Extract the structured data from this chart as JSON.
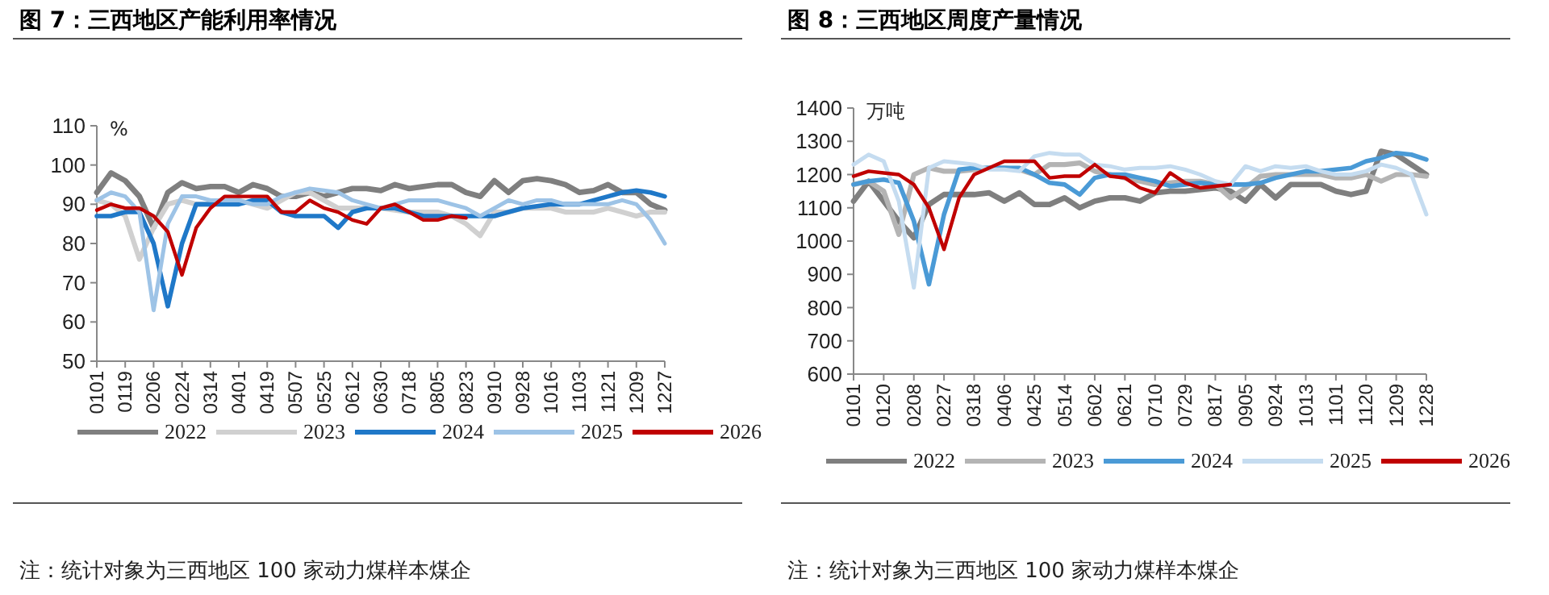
{
  "chart_data": [
    {
      "type": "line",
      "title": "图 7：三西地区产能利用率情况",
      "ylabel": "%",
      "legend": "bottom",
      "grid": false,
      "marker": "none",
      "line_style": "solid",
      "categories": [
        "0101",
        null,
        "0119",
        null,
        "0206",
        null,
        "0224",
        null,
        "0314",
        null,
        "0401",
        null,
        "0419",
        null,
        "0507",
        null,
        "0525",
        null,
        "0612",
        null,
        "0630",
        null,
        "0718",
        null,
        "0805",
        null,
        "0823",
        null,
        "0910",
        null,
        "0928",
        null,
        "1016",
        null,
        "1103",
        null,
        "1121",
        null,
        "1209",
        null,
        "1227"
      ],
      "ylim": [
        50,
        110
      ],
      "yticks": [
        50,
        60,
        70,
        80,
        90,
        100,
        110
      ],
      "annotations": [
        "注：统计对象为三西地区 100 家动力煤样本煤企"
      ],
      "series": [
        {
          "name": "2022",
          "color": "#7f7f7f",
          "values": [
            93,
            98,
            96,
            92,
            84,
            93,
            95.5,
            94,
            94.5,
            94.5,
            93,
            95,
            94,
            92,
            92,
            93,
            92,
            93,
            94,
            94,
            93.5,
            95,
            94,
            94.5,
            95,
            95,
            93,
            92,
            96,
            93,
            96,
            96.5,
            96,
            95,
            93,
            93.5,
            95,
            93,
            93,
            90,
            88.5
          ]
        },
        {
          "name": "2023",
          "color": "#d0d0d0",
          "values": [
            91,
            90,
            87,
            76,
            84,
            90,
            91,
            90,
            90,
            91,
            91,
            90,
            89,
            91,
            93,
            93,
            91,
            89,
            89,
            89,
            89,
            88.5,
            88,
            88,
            88,
            87,
            85,
            82,
            88,
            88,
            89,
            89,
            89,
            88,
            88,
            88,
            89,
            88,
            87,
            88,
            88
          ]
        },
        {
          "name": "2024",
          "color": "#1f78c8",
          "values": [
            87,
            87,
            88,
            88,
            80,
            64,
            80,
            90,
            90,
            90,
            90,
            91,
            91,
            88,
            87,
            87,
            87,
            84,
            88,
            89,
            89,
            89,
            88,
            87,
            87,
            87,
            87,
            87,
            87,
            88,
            89,
            89.5,
            90,
            90,
            90,
            91,
            92,
            93,
            93.5,
            93,
            92
          ]
        },
        {
          "name": "2025",
          "color": "#9dc3e6",
          "values": [
            91,
            93,
            92,
            88,
            63,
            85,
            92,
            92,
            91,
            91,
            91,
            90,
            90,
            92,
            93,
            94,
            93.5,
            93,
            91,
            90,
            89,
            90,
            91,
            91,
            91,
            90,
            89,
            87,
            89,
            91,
            90,
            91,
            91,
            90,
            90,
            90,
            90,
            91,
            90,
            86,
            80
          ]
        },
        {
          "name": "2026",
          "color": "#c00000",
          "values": [
            88.5,
            90,
            89,
            89,
            87,
            83,
            72,
            84,
            89,
            92,
            92,
            92,
            92,
            88,
            88,
            91,
            89,
            88,
            86,
            85,
            89,
            90,
            88,
            86,
            86,
            87,
            86.5,
            null,
            null,
            null,
            null,
            null,
            null,
            null,
            null,
            null,
            null,
            null,
            null,
            null,
            null
          ]
        }
      ]
    },
    {
      "type": "line",
      "title": "图 8：三西地区周度产量情况",
      "ylabel": "万吨",
      "legend": "bottom",
      "grid": false,
      "marker": "none",
      "line_style": "solid",
      "categories": [
        "0101",
        null,
        "0120",
        null,
        "0208",
        null,
        "0227",
        null,
        "0318",
        null,
        "0406",
        null,
        "0425",
        null,
        "0514",
        null,
        "0602",
        null,
        "0621",
        null,
        "0710",
        null,
        "0729",
        null,
        "0817",
        null,
        "0905",
        null,
        "0924",
        null,
        "1013",
        null,
        "1101",
        null,
        "1120",
        null,
        "1209",
        null,
        "1228"
      ],
      "ylim": [
        600,
        1400
      ],
      "yticks": [
        600,
        700,
        800,
        900,
        1000,
        1100,
        1200,
        1300,
        1400
      ],
      "annotations": [
        "注：统计对象为三西地区 100 家动力煤样本煤企"
      ],
      "series": [
        {
          "name": "2022",
          "color": "#7f7f7f",
          "values": [
            1120,
            1180,
            1120,
            1060,
            1010,
            1110,
            1140,
            1140,
            1140,
            1145,
            1120,
            1145,
            1110,
            1110,
            1130,
            1100,
            1120,
            1130,
            1130,
            1120,
            1145,
            1150,
            1150,
            1155,
            1160,
            1150,
            1120,
            1170,
            1130,
            1170,
            1170,
            1170,
            1150,
            1140,
            1150,
            1270,
            1260,
            1230,
            1200
          ]
        },
        {
          "name": "2023",
          "color": "#b4b4b4",
          "values": [
            1170,
            1180,
            1150,
            1020,
            1200,
            1220,
            1210,
            1210,
            1215,
            1220,
            1220,
            1215,
            1200,
            1230,
            1230,
            1235,
            1210,
            1200,
            1190,
            1180,
            1170,
            1175,
            1180,
            1180,
            1170,
            1130,
            1160,
            1195,
            1200,
            1200,
            1200,
            1200,
            1190,
            1190,
            1200,
            1180,
            1200,
            1200,
            1195
          ]
        },
        {
          "name": "2024",
          "color": "#4a9ad6",
          "values": [
            1170,
            1180,
            1185,
            1175,
            1060,
            870,
            1080,
            1215,
            1220,
            1220,
            1220,
            1220,
            1200,
            1175,
            1170,
            1140,
            1190,
            1200,
            1200,
            1190,
            1180,
            1165,
            1170,
            1175,
            1170,
            1170,
            1170,
            1175,
            1190,
            1200,
            1210,
            1210,
            1215,
            1220,
            1240,
            1250,
            1265,
            1260,
            1245
          ]
        },
        {
          "name": "2025",
          "color": "#c5dcf0",
          "values": [
            1230,
            1260,
            1240,
            1120,
            860,
            1220,
            1240,
            1235,
            1230,
            1215,
            1215,
            1210,
            1255,
            1265,
            1260,
            1260,
            1230,
            1225,
            1215,
            1220,
            1220,
            1225,
            1215,
            1200,
            1180,
            1170,
            1225,
            1210,
            1225,
            1220,
            1225,
            1210,
            1200,
            1200,
            1210,
            1230,
            1220,
            1200,
            1080
          ]
        },
        {
          "name": "2026",
          "color": "#c00000",
          "values": [
            1195,
            1210,
            1205,
            1200,
            1170,
            1100,
            975,
            1130,
            1200,
            1220,
            1240,
            1240,
            1240,
            1190,
            1195,
            1195,
            1230,
            1195,
            1190,
            1160,
            1145,
            1205,
            1175,
            1160,
            1165,
            1170,
            null,
            null,
            null,
            null,
            null,
            null,
            null,
            null,
            null,
            null,
            null,
            null,
            null
          ]
        }
      ]
    }
  ]
}
